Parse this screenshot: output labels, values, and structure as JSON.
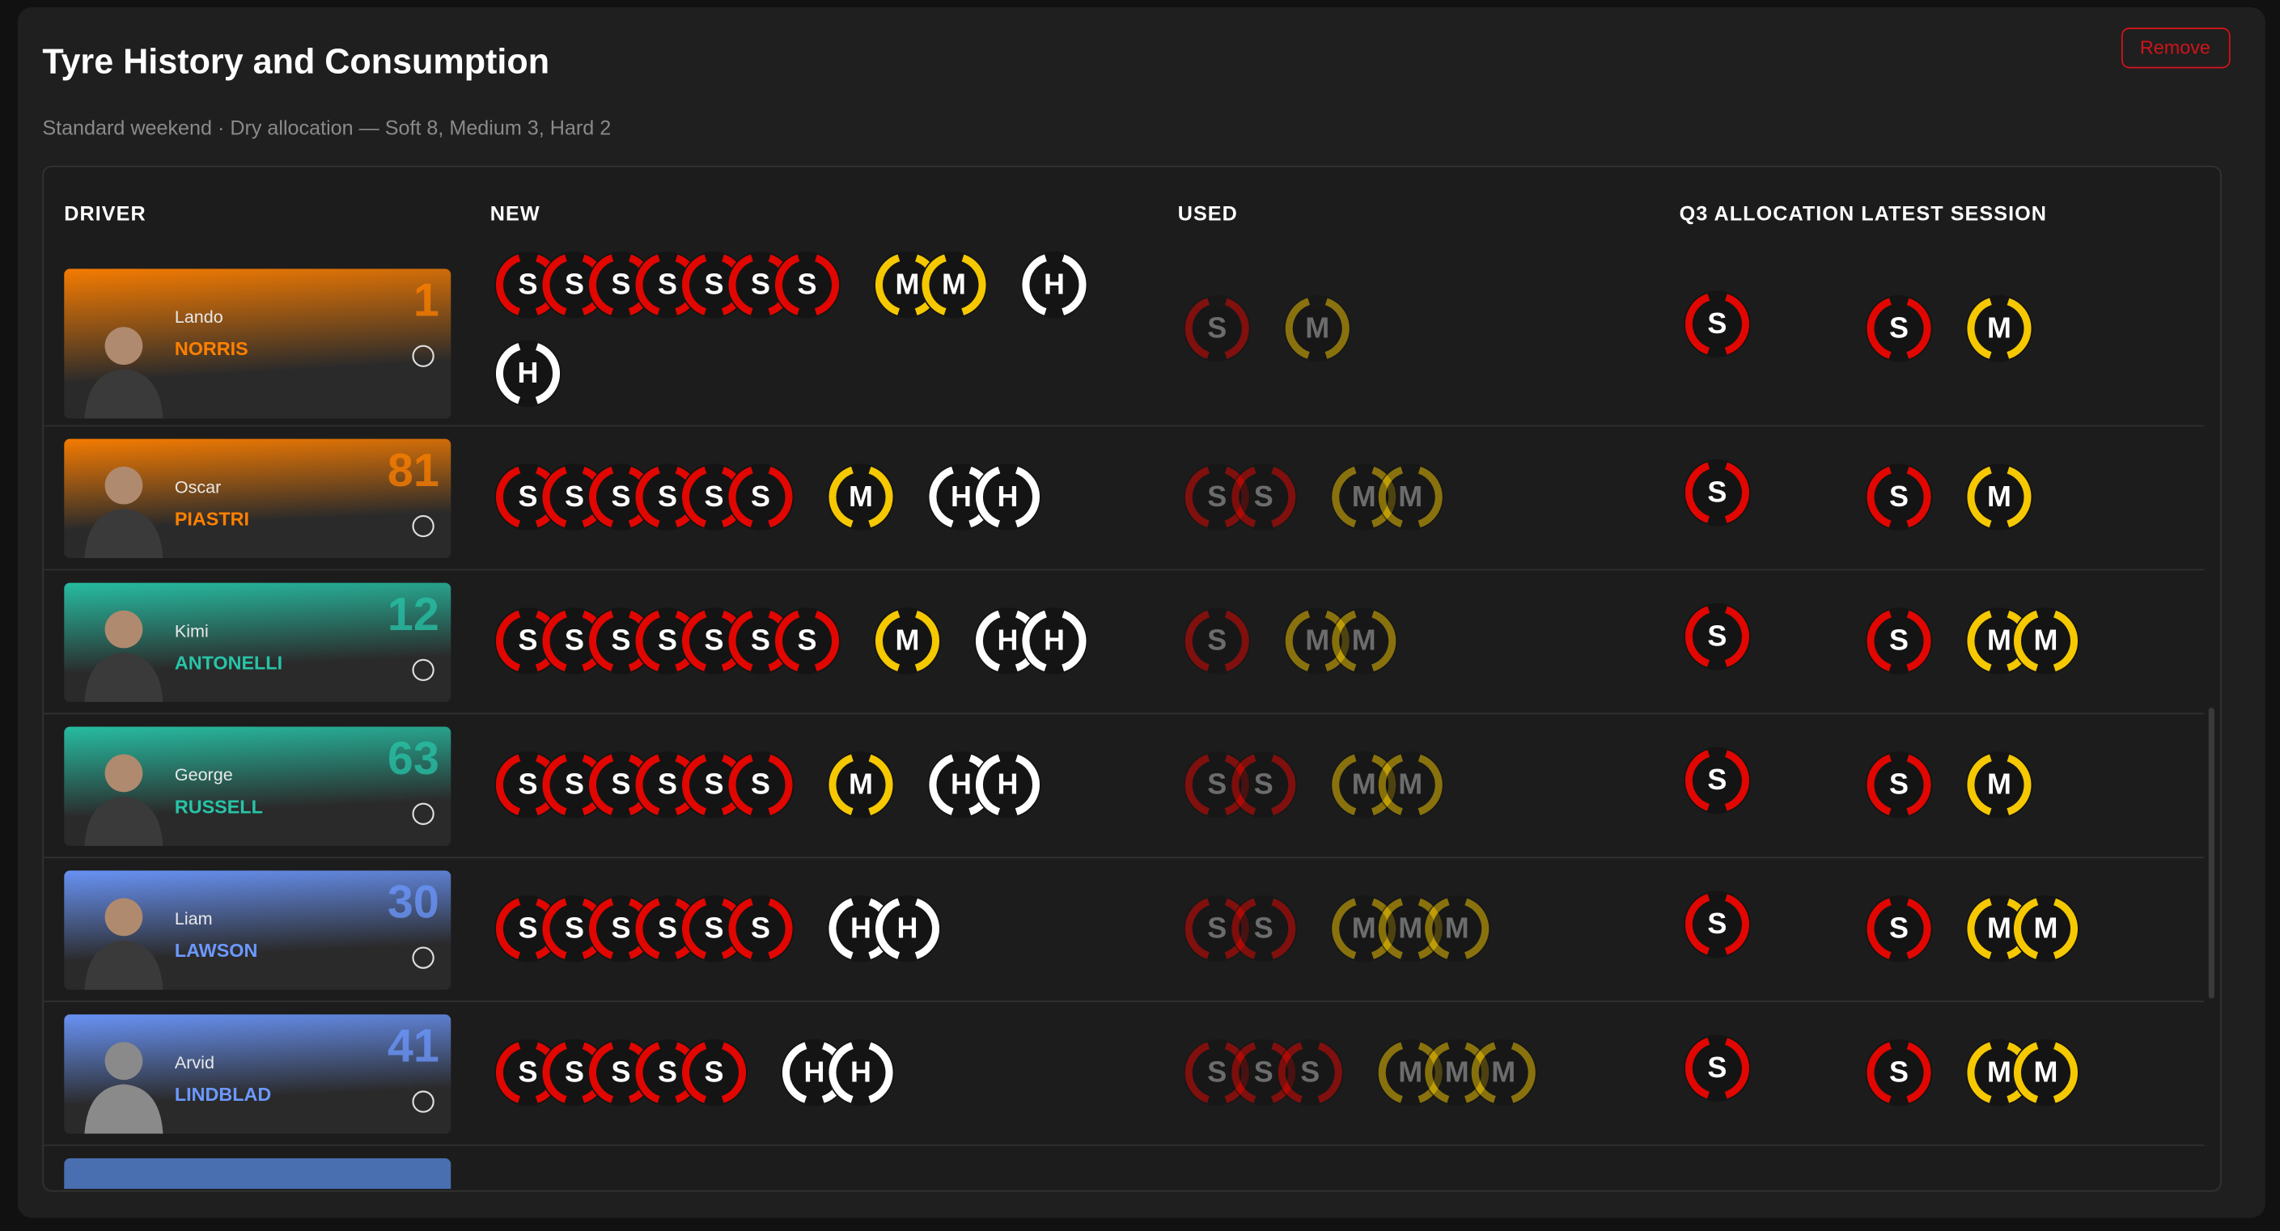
{
  "header": {
    "title": "Tyre History and Consumption",
    "subtitle": "Standard weekend · Dry allocation — Soft 8, Medium 3, Hard 2",
    "action": "Remove"
  },
  "table": {
    "columns": [
      "DRIVER",
      "NEW",
      "USED",
      "Q3 ALLOCATION",
      "LATEST SESSION"
    ],
    "compound_colors": {
      "S": "#e10600",
      "M": "#f5c800",
      "H": "#ffffff"
    },
    "rows": [
      {
        "first": "Lando",
        "last": "NORRIS",
        "number": "1",
        "color": "#ff8000",
        "new": [
          "S",
          "S",
          "S",
          "S",
          "S",
          "S",
          "S",
          "M",
          "M",
          "H",
          "H"
        ],
        "used": [
          "S",
          "M"
        ],
        "q3": [
          "S"
        ],
        "latest": [
          "S",
          "M"
        ]
      },
      {
        "first": "Oscar",
        "last": "PIASTRI",
        "number": "81",
        "color": "#ff8000",
        "new": [
          "S",
          "S",
          "S",
          "S",
          "S",
          "S",
          "M",
          "H",
          "H"
        ],
        "used": [
          "S",
          "S",
          "M",
          "M"
        ],
        "q3": [
          "S"
        ],
        "latest": [
          "S",
          "M"
        ]
      },
      {
        "first": "Kimi",
        "last": "ANTONELLI",
        "number": "12",
        "color": "#27c4a8",
        "new": [
          "S",
          "S",
          "S",
          "S",
          "S",
          "S",
          "S",
          "M",
          "H",
          "H"
        ],
        "used": [
          "S",
          "M",
          "M"
        ],
        "q3": [
          "S"
        ],
        "latest": [
          "S",
          "M",
          "M"
        ]
      },
      {
        "first": "George",
        "last": "RUSSELL",
        "number": "63",
        "color": "#27c4a8",
        "new": [
          "S",
          "S",
          "S",
          "S",
          "S",
          "S",
          "M",
          "H",
          "H"
        ],
        "used": [
          "S",
          "S",
          "M",
          "M"
        ],
        "q3": [
          "S"
        ],
        "latest": [
          "S",
          "M"
        ]
      },
      {
        "first": "Liam",
        "last": "LAWSON",
        "number": "30",
        "color": "#6c98ff",
        "new": [
          "S",
          "S",
          "S",
          "S",
          "S",
          "S",
          "H",
          "H"
        ],
        "used": [
          "S",
          "S",
          "M",
          "M",
          "M"
        ],
        "q3": [
          "S"
        ],
        "latest": [
          "S",
          "M",
          "M"
        ]
      },
      {
        "first": "Arvid",
        "last": "LINDBLAD",
        "number": "41",
        "color": "#6c98ff",
        "new": [
          "S",
          "S",
          "S",
          "S",
          "S",
          "H",
          "H"
        ],
        "used": [
          "S",
          "S",
          "S",
          "M",
          "M",
          "M"
        ],
        "q3": [
          "S"
        ],
        "latest": [
          "S",
          "M",
          "M"
        ]
      }
    ]
  }
}
